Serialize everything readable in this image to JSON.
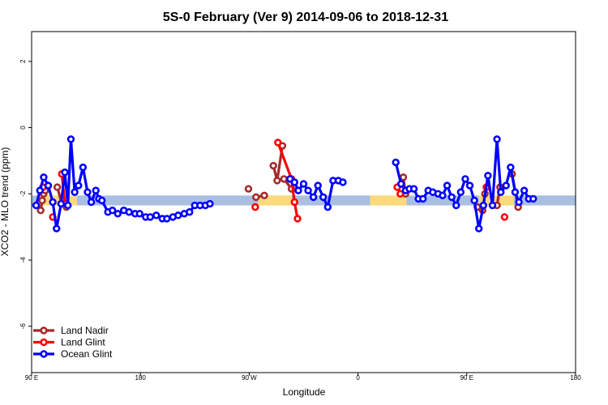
{
  "chart_data": {
    "type": "line",
    "title": "5S-0 February (Ver 9)   2014-09-06 to 2018-12-31",
    "xlabel": "Longitude",
    "ylabel": "XCO2 - MLO trend (ppm)",
    "xlim": [
      90,
      450
    ],
    "ylim": [
      -7.4,
      2.9
    ],
    "x_ticks": [
      {
        "value": 90,
        "label": "90 E"
      },
      {
        "value": 162,
        "label": "180"
      },
      {
        "value": 234,
        "label": "90 W"
      },
      {
        "value": 306,
        "label": "0"
      },
      {
        "value": 378,
        "label": "90 E"
      },
      {
        "value": 450,
        "label": "180"
      }
    ],
    "y_ticks": [
      {
        "value": 2,
        "label": "2"
      },
      {
        "value": 0,
        "label": "0"
      },
      {
        "value": -2,
        "label": "-2"
      },
      {
        "value": -4,
        "label": "-4"
      },
      {
        "value": -6,
        "label": "-6"
      }
    ],
    "band": {
      "y_low": -2.35,
      "y_high": -2.05,
      "segments": [
        {
          "from": 90,
          "to": 96,
          "color": "#a9bfe1"
        },
        {
          "from": 96,
          "to": 120,
          "color": "#fcd97a"
        },
        {
          "from": 120,
          "to": 240,
          "color": "#a9bfe1"
        },
        {
          "from": 240,
          "to": 262,
          "color": "#fcd97a"
        },
        {
          "from": 262,
          "to": 314,
          "color": "#a9bfe1"
        },
        {
          "from": 314,
          "to": 338,
          "color": "#fcd97a"
        },
        {
          "from": 338,
          "to": 386,
          "color": "#a9bfe1"
        },
        {
          "from": 386,
          "to": 409,
          "color": "#fcd97a"
        },
        {
          "from": 409,
          "to": 450,
          "color": "#a9bfe1"
        }
      ]
    },
    "series": [
      {
        "name": "Land Nadir",
        "color": "#a52a2a",
        "segments": [
          [
            [
              96,
              -2.5
            ],
            [
              97,
              -2.2
            ],
            [
              98,
              -2.0
            ],
            [
              99,
              -1.9
            ]
          ],
          [
            [
              107,
              -1.8
            ],
            [
              110,
              -2.3
            ],
            [
              113,
              -2.4
            ]
          ],
          [
            [
              111,
              -1.4
            ]
          ],
          [
            [
              233.5,
              -1.85
            ]
          ],
          [
            [
              238.5,
              -2.1
            ],
            [
              244,
              -2.05
            ]
          ],
          [
            [
              250,
              -1.15
            ],
            [
              252.5,
              -1.6
            ],
            [
              256,
              -0.55
            ]
          ],
          [
            [
              257,
              -1.55
            ],
            [
              262,
              -1.85
            ]
          ],
          [
            [
              336,
              -1.5
            ],
            [
              337.5,
              -2.0
            ]
          ],
          [
            [
              385,
              -2.4
            ],
            [
              388.5,
              -2.5
            ],
            [
              390,
              -2.0
            ]
          ],
          [
            [
              398,
              -2.35
            ],
            [
              400,
              -1.8
            ]
          ],
          [
            [
              408,
              -1.4
            ],
            [
              412,
              -2.4
            ]
          ]
        ]
      },
      {
        "name": "Land Glint",
        "color": "#ff0000",
        "segments": [
          [
            [
              97.5,
              -1.8
            ]
          ],
          [
            [
              104,
              -2.7
            ]
          ],
          [
            [
              110,
              -1.4
            ],
            [
              112,
              -2.3
            ]
          ],
          [
            [
              238,
              -2.4
            ]
          ],
          [
            [
              253,
              -0.45
            ],
            [
              262,
              -1.55
            ],
            [
              264,
              -2.25
            ],
            [
              266,
              -2.75
            ]
          ],
          [
            [
              332,
              -1.8
            ],
            [
              334,
              -2.0
            ]
          ],
          [
            [
              391,
              -1.8
            ]
          ],
          [
            [
              403,
              -2.7
            ]
          ]
        ]
      },
      {
        "name": "Ocean Glint",
        "color": "#0000ff",
        "segments": [
          [
            [
              93,
              -2.35
            ],
            [
              95.5,
              -1.9
            ],
            [
              98,
              -1.5
            ],
            [
              101,
              -1.75
            ],
            [
              104,
              -2.25
            ],
            [
              106.5,
              -3.05
            ],
            [
              109.5,
              -2.3
            ],
            [
              112,
              -1.35
            ],
            [
              114,
              -2.35
            ],
            [
              116,
              -0.35
            ],
            [
              118.5,
              -1.95
            ],
            [
              121,
              -1.75
            ],
            [
              124,
              -1.2
            ],
            [
              127,
              -1.95
            ],
            [
              129.5,
              -2.25
            ],
            [
              132.5,
              -1.9
            ],
            [
              134.5,
              -2.15
            ],
            [
              136.5,
              -2.2
            ],
            [
              140.5,
              -2.55
            ],
            [
              143.5,
              -2.5
            ],
            [
              147,
              -2.6
            ],
            [
              151,
              -2.5
            ],
            [
              154.5,
              -2.55
            ],
            [
              158.5,
              -2.6
            ],
            [
              161.5,
              -2.6
            ],
            [
              165.5,
              -2.7
            ],
            [
              168.5,
              -2.7
            ],
            [
              172.5,
              -2.65
            ],
            [
              176.5,
              -2.75
            ],
            [
              179.5,
              -2.75
            ],
            [
              183.5,
              -2.7
            ],
            [
              187,
              -2.65
            ],
            [
              191,
              -2.6
            ],
            [
              194.5,
              -2.55
            ],
            [
              198,
              -2.35
            ],
            [
              201.5,
              -2.35
            ],
            [
              205,
              -2.35
            ],
            [
              208,
              -2.3
            ]
          ],
          [
            [
              261,
              -1.55
            ],
            [
              264,
              -1.65
            ],
            [
              266.5,
              -1.9
            ],
            [
              270,
              -1.7
            ],
            [
              273,
              -1.9
            ],
            [
              276.5,
              -2.1
            ],
            [
              279.5,
              -1.75
            ],
            [
              283,
              -2.1
            ],
            [
              286,
              -2.4
            ],
            [
              289.5,
              -1.6
            ],
            [
              293,
              -1.6
            ],
            [
              296,
              -1.65
            ]
          ],
          [
            [
              331,
              -1.05
            ],
            [
              334.5,
              -1.7
            ],
            [
              337.5,
              -1.9
            ],
            [
              340,
              -1.85
            ],
            [
              343,
              -1.85
            ],
            [
              346,
              -2.15
            ],
            [
              349,
              -2.15
            ],
            [
              352.5,
              -1.9
            ],
            [
              355.5,
              -1.95
            ],
            [
              359,
              -2.0
            ],
            [
              362,
              -2.05
            ],
            [
              365,
              -1.75
            ],
            [
              368,
              -2.1
            ],
            [
              371,
              -2.35
            ],
            [
              374,
              -1.95
            ],
            [
              377,
              -1.55
            ],
            [
              380,
              -1.75
            ],
            [
              383,
              -2.2
            ],
            [
              386,
              -3.05
            ],
            [
              389,
              -2.35
            ],
            [
              392,
              -1.45
            ],
            [
              395,
              -2.35
            ],
            [
              398,
              -0.35
            ],
            [
              400.5,
              -1.95
            ],
            [
              404,
              -1.75
            ],
            [
              407,
              -1.2
            ],
            [
              410,
              -1.95
            ],
            [
              412.5,
              -2.25
            ],
            [
              416,
              -1.9
            ],
            [
              419,
              -2.15
            ],
            [
              422,
              -2.15
            ]
          ]
        ]
      }
    ],
    "legend": {
      "position": "bottom-left",
      "items": [
        "Land Nadir",
        "Land Glint",
        "Ocean Glint"
      ]
    },
    "grid": false
  }
}
